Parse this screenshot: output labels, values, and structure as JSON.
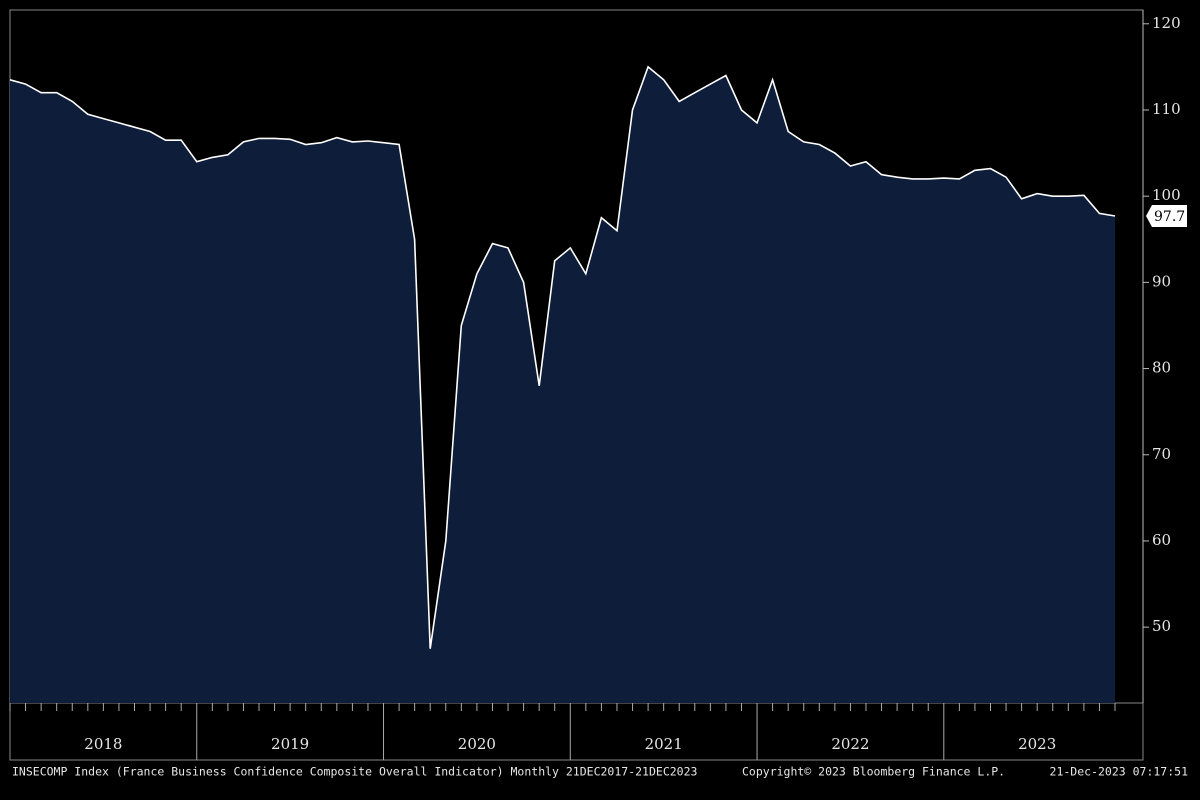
{
  "chart_data": {
    "type": "area",
    "categories": [
      null,
      null,
      null,
      null,
      null,
      null,
      "2018",
      null,
      null,
      null,
      null,
      null,
      null,
      null,
      null,
      null,
      null,
      null,
      "2019",
      null,
      null,
      null,
      null,
      null,
      null,
      null,
      null,
      null,
      null,
      null,
      "2020",
      null,
      null,
      null,
      null,
      null,
      null,
      null,
      null,
      null,
      null,
      null,
      "2021",
      null,
      null,
      null,
      null,
      null,
      null,
      null,
      null,
      null,
      null,
      null,
      "2022",
      null,
      null,
      null,
      null,
      null,
      null,
      null,
      null,
      null,
      null,
      null,
      "2023",
      null,
      null,
      null,
      null,
      null
    ],
    "series": [
      {
        "name": "INSECOMP Index",
        "color": "#ffffff",
        "fill": "#0e1d39",
        "values": [
          113.5,
          113,
          112,
          112,
          111,
          109.5,
          109,
          108.5,
          108,
          107.5,
          106.5,
          106.5,
          104,
          104.5,
          104.8,
          106.3,
          106.7,
          106.7,
          106.6,
          106,
          106.2,
          106.8,
          106.3,
          106.4,
          106.2,
          106,
          95,
          47.5,
          60,
          85,
          91,
          94.5,
          94,
          90,
          78,
          92.5,
          94,
          91,
          97.5,
          96,
          110,
          115,
          113.5,
          111,
          112,
          113,
          114,
          110,
          108.5,
          113.5,
          107.5,
          106.3,
          106,
          105,
          103.5,
          104,
          102.5,
          102.2,
          102,
          102,
          102.1,
          102,
          103,
          103.2,
          102.2,
          99.7,
          100.3,
          100,
          100,
          100.1,
          98,
          97.7
        ]
      }
    ],
    "ylim": [
      41.2,
      121.6
    ],
    "yticks": [
      50,
      60,
      70,
      80,
      90,
      100,
      110,
      120
    ],
    "footer": {
      "description": "INSECOMP Index (France Business Confidence Composite Overall Indicator)  Monthly 21DEC2017-21DEC2023",
      "copyright": "Copyright© 2023 Bloomberg Finance L.P.",
      "timestamp": "21-Dec-2023 07:17:51"
    }
  }
}
